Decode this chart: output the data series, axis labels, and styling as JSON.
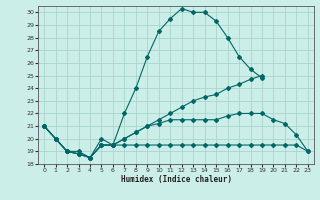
{
  "xlabel": "Humidex (Indice chaleur)",
  "bg_color": "#cceee8",
  "grid_color": "#aad4cc",
  "line_color": "#006666",
  "xlim": [
    -0.5,
    23.5
  ],
  "ylim": [
    18,
    30.5
  ],
  "xticks": [
    0,
    1,
    2,
    3,
    4,
    5,
    6,
    7,
    8,
    9,
    10,
    11,
    12,
    13,
    14,
    15,
    16,
    17,
    18,
    19,
    20,
    21,
    22,
    23
  ],
  "yticks": [
    18,
    19,
    20,
    21,
    22,
    23,
    24,
    25,
    26,
    27,
    28,
    29,
    30
  ],
  "line1_x": [
    0,
    1,
    2,
    3,
    4,
    5,
    6,
    7,
    8,
    9,
    10,
    11,
    12,
    13,
    14,
    15,
    16,
    17,
    18,
    19
  ],
  "line1_y": [
    21,
    20,
    19,
    19,
    18.5,
    20,
    19.5,
    22,
    24,
    26.5,
    28.5,
    29.5,
    30.3,
    30.0,
    30.0,
    29.3,
    28.0,
    26.5,
    25.5,
    24.8
  ],
  "line2_x": [
    0,
    1,
    2,
    3,
    4,
    5,
    6,
    7,
    8,
    9,
    10,
    11,
    12,
    13,
    14,
    15,
    16,
    17,
    18,
    19
  ],
  "line2_y": [
    21,
    20,
    19,
    18.8,
    18.5,
    19.5,
    19.5,
    20.0,
    20.5,
    21.0,
    21.5,
    22.0,
    22.5,
    23.0,
    23.3,
    23.5,
    24.0,
    24.3,
    24.7,
    25.0
  ],
  "line3_x": [
    0,
    1,
    2,
    3,
    4,
    5,
    6,
    7,
    8,
    9,
    10,
    11,
    12,
    13,
    14,
    15,
    16,
    17,
    18,
    19,
    20,
    21,
    22,
    23
  ],
  "line3_y": [
    21,
    20,
    19,
    18.8,
    18.5,
    19.5,
    19.5,
    20.0,
    20.5,
    21.0,
    21.2,
    21.5,
    21.5,
    21.5,
    21.5,
    21.5,
    21.8,
    22.0,
    22.0,
    22.0,
    21.5,
    21.2,
    20.3,
    19.0
  ],
  "line4_x": [
    0,
    1,
    2,
    3,
    4,
    5,
    6,
    7,
    8,
    9,
    10,
    11,
    12,
    13,
    14,
    15,
    16,
    17,
    18,
    19,
    20,
    21,
    22,
    23
  ],
  "line4_y": [
    21,
    20,
    19,
    18.8,
    18.5,
    19.5,
    19.5,
    19.5,
    19.5,
    19.5,
    19.5,
    19.5,
    19.5,
    19.5,
    19.5,
    19.5,
    19.5,
    19.5,
    19.5,
    19.5,
    19.5,
    19.5,
    19.5,
    19.0
  ]
}
